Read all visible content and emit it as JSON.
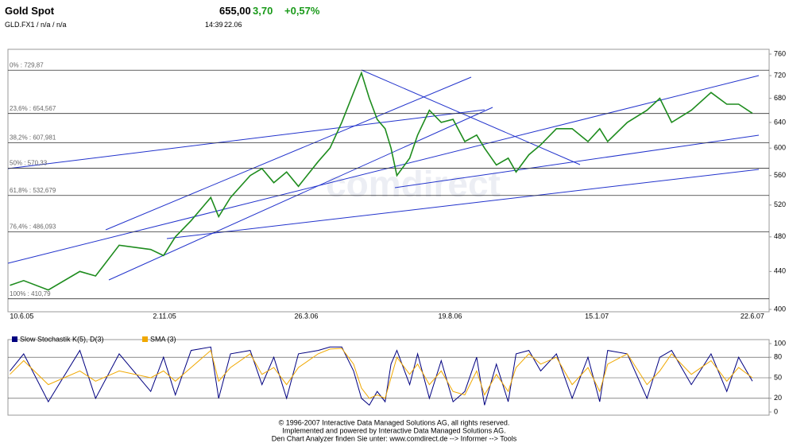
{
  "header": {
    "title": "Gold Spot",
    "subtitle": "GLD.FX1 / n/a / n/a",
    "price": "655,00",
    "change": "3,70",
    "change_pct": "+0,57%",
    "time": "14:39",
    "date": "22.06"
  },
  "chart_data": [
    {
      "type": "line",
      "log_scale": true,
      "watermark": "comdirect",
      "x": [
        "29.5.05",
        "12.6.05",
        "7.7.05",
        "8.8.05",
        "24.8.05",
        "17.9.05",
        "19.10.05",
        "1.11.05",
        "13.11.05",
        "29.11.05",
        "19.12.05",
        "27.12.05",
        "8.1.06",
        "28.1.06",
        "9.2.06",
        "21.2.06",
        "6.3.06",
        "18.3.06",
        "7.4.06",
        "19.4.06",
        "1.5.06",
        "13.5.06",
        "21.5.06",
        "29.5.06",
        "6.6.06",
        "14.6.06",
        "20.6.06",
        "26.6.06",
        "9.7.06",
        "17.7.06",
        "29.7.06",
        "10.8.06",
        "22.8.06",
        "3.9.06",
        "15.9.06",
        "23.9.06",
        "5.10.06",
        "17.10.06",
        "25.10.06",
        "7.11.06",
        "19.11.06",
        "5.12.06",
        "21.12.06",
        "6.1.07",
        "18.1.07",
        "26.1.07",
        "15.2.07",
        "7.3.07",
        "20.3.07",
        "1.4.07",
        "21.4.07",
        "11.5.07",
        "27.5.07",
        "8.6.07",
        "22.6.07"
      ],
      "series": [
        {
          "name": "Gold Spot",
          "color": "#1e8c1e",
          "values": [
            425,
            430,
            420,
            440,
            435,
            470,
            465,
            458,
            480,
            500,
            530,
            505,
            530,
            560,
            570,
            550,
            565,
            545,
            580,
            600,
            640,
            690,
            725,
            680,
            645,
            630,
            600,
            560,
            585,
            620,
            660,
            640,
            645,
            610,
            620,
            600,
            575,
            585,
            565,
            590,
            605,
            630,
            630,
            610,
            630,
            610,
            640,
            660,
            680,
            640,
            660,
            690,
            670,
            670,
            655
          ]
        }
      ],
      "xlim": [
        "27.5.05",
        "9.7.07"
      ],
      "xticks": [
        "10.6.05",
        "2.11.05",
        "26.3.06",
        "19.8.06",
        "15.1.07",
        "22.6.07"
      ],
      "ylim": [
        400,
        760
      ],
      "yticks": [
        400,
        440,
        480,
        520,
        560,
        600,
        640,
        680,
        720,
        760
      ],
      "levels": [
        {
          "label": "0% : 729,87",
          "value": 729.87
        },
        {
          "label": "23,6% : 654,567",
          "value": 654.567
        },
        {
          "label": "38,2% : 607,981",
          "value": 607.981
        },
        {
          "label": "50% : 570,33",
          "value": 570.33
        },
        {
          "label": "61,8% : 532,679",
          "value": 532.679
        },
        {
          "label": "76,4% : 486,093",
          "value": 486.093
        },
        {
          "label": "100% : 410,79",
          "value": 410.79
        }
      ]
    },
    {
      "type": "line",
      "x": [
        "29.5.05",
        "12.6.05",
        "7.7.05",
        "8.8.05",
        "24.8.05",
        "17.9.05",
        "19.10.05",
        "1.11.05",
        "13.11.05",
        "29.11.05",
        "19.12.05",
        "27.12.05",
        "8.1.06",
        "28.1.06",
        "9.2.06",
        "21.2.06",
        "6.3.06",
        "18.3.06",
        "7.4.06",
        "19.4.06",
        "1.5.06",
        "13.5.06",
        "21.5.06",
        "29.5.06",
        "6.6.06",
        "14.6.06",
        "20.6.06",
        "26.6.06",
        "9.7.06",
        "17.7.06",
        "29.7.06",
        "10.8.06",
        "22.8.06",
        "3.9.06",
        "15.9.06",
        "23.9.06",
        "5.10.06",
        "17.10.06",
        "25.10.06",
        "7.11.06",
        "19.11.06",
        "5.12.06",
        "21.12.06",
        "6.1.07",
        "18.1.07",
        "26.1.07",
        "15.2.07",
        "7.3.07",
        "20.3.07",
        "1.4.07",
        "21.4.07",
        "11.5.07",
        "27.5.07",
        "8.6.07",
        "22.6.07"
      ],
      "series": [
        {
          "name": "Slow Stochastik K(5), D(3)",
          "color": "#000080",
          "values": [
            60,
            85,
            15,
            90,
            20,
            85,
            30,
            80,
            25,
            90,
            95,
            20,
            85,
            90,
            40,
            80,
            20,
            85,
            90,
            95,
            95,
            60,
            20,
            10,
            30,
            15,
            70,
            90,
            40,
            85,
            20,
            75,
            15,
            30,
            80,
            10,
            70,
            15,
            85,
            90,
            60,
            85,
            20,
            80,
            15,
            90,
            85,
            20,
            80,
            90,
            40,
            85,
            30,
            80,
            45
          ]
        },
        {
          "name": "SMA (3)",
          "color": "#f0a800",
          "values": [
            55,
            75,
            40,
            60,
            45,
            60,
            50,
            60,
            45,
            65,
            90,
            45,
            65,
            85,
            55,
            65,
            40,
            65,
            85,
            92,
            93,
            70,
            35,
            20,
            25,
            20,
            50,
            80,
            55,
            70,
            40,
            60,
            30,
            25,
            60,
            25,
            55,
            30,
            65,
            85,
            70,
            80,
            40,
            65,
            30,
            70,
            85,
            40,
            60,
            85,
            55,
            75,
            45,
            65,
            50
          ]
        }
      ],
      "xlim": [
        "27.5.05",
        "9.7.07"
      ],
      "ylim": [
        0,
        100
      ],
      "yticks": [
        0,
        20,
        50,
        80,
        100
      ]
    }
  ],
  "footer": [
    "© 1996-2007 Interactive Data Managed Solutions AG, all rights reserved.",
    "Implemented and powered by Interactive Data Managed Solutions AG.",
    "Den Chart Analyzer finden Sie unter: www.comdirect.de --> Informer --> Tools"
  ]
}
